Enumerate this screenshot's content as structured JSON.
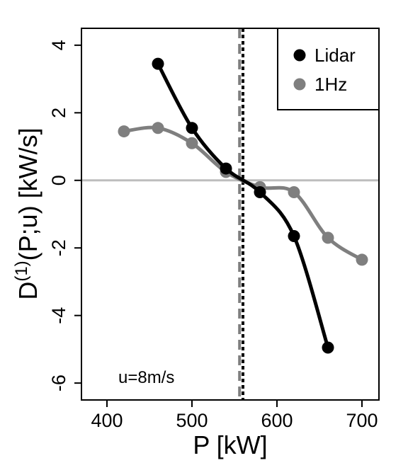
{
  "chart_data": {
    "type": "line",
    "xlabel": "P [kW]",
    "ylabel": {
      "main": "D",
      "superscript": "(1)",
      "rest": "(P;u) [kW/s]"
    },
    "xlim": [
      370,
      720
    ],
    "ylim": [
      -6.5,
      4.5
    ],
    "xticks": [
      400,
      500,
      600,
      700
    ],
    "yticks": [
      -6,
      -4,
      -2,
      0,
      2,
      4
    ],
    "xtick_labels": [
      "400",
      "500",
      "600",
      "700"
    ],
    "ytick_labels": [
      "-6",
      "-4",
      "-2",
      "0",
      "2",
      "4"
    ],
    "grid": false,
    "legend_position": "top-right",
    "annotation": "u=8m/s",
    "zero_line": {
      "y": 0,
      "color": "#bdbdbd"
    },
    "vertical_lines": [
      {
        "series": "1Hz",
        "x": 556,
        "style": "dashed",
        "color": "#7f7f7f"
      },
      {
        "series": "Lidar",
        "x": 560,
        "style": "dotted",
        "color": "#000000"
      }
    ],
    "series": [
      {
        "name": "Lidar",
        "color": "#000000",
        "x": [
          460,
          500,
          540,
          580,
          620,
          660
        ],
        "y": [
          3.45,
          1.55,
          0.35,
          -0.35,
          -1.65,
          -4.95
        ]
      },
      {
        "name": "1Hz",
        "color": "#7f7f7f",
        "x": [
          420,
          460,
          500,
          540,
          580,
          620,
          660,
          700
        ],
        "y": [
          1.45,
          1.55,
          1.1,
          0.25,
          -0.2,
          -0.35,
          -1.7,
          -2.35
        ]
      }
    ]
  }
}
